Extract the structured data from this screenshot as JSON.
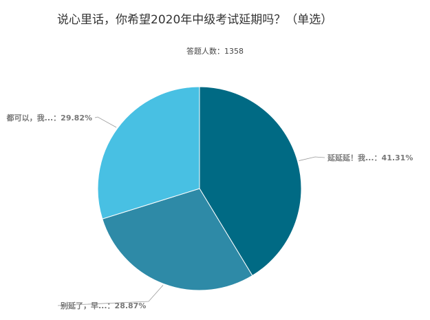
{
  "chart_data": {
    "type": "pie",
    "title": "说心里话，你希望2020年中级考试延期吗？（单选）",
    "subtitle": "答题人数：1358",
    "slices": [
      {
        "label": "延延延！我...：41.31%",
        "value": 41.31,
        "color": "#006a84"
      },
      {
        "label": "别延了，早...：28.87%",
        "value": 28.87,
        "color": "#2e8aa7"
      },
      {
        "label": "都可以，我...：29.82%",
        "value": 29.82,
        "color": "#48c0e3"
      }
    ],
    "legend": "none"
  }
}
